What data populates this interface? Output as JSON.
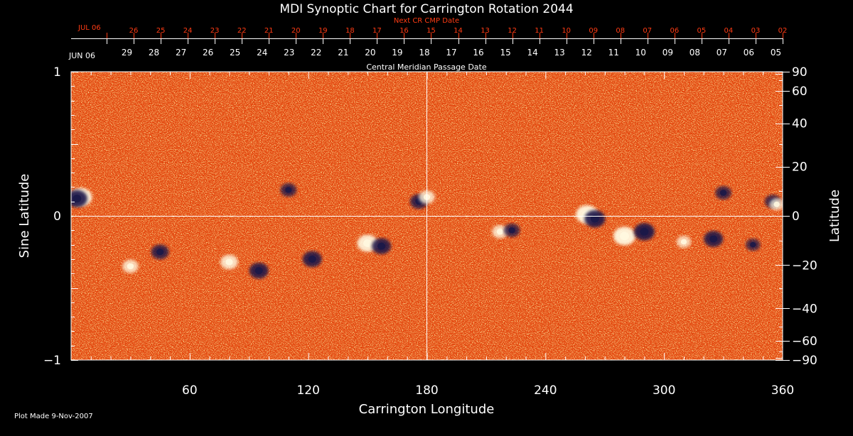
{
  "chart_data": {
    "type": "heatmap",
    "title": "MDI Synoptic Chart for Carrington Rotation 2044",
    "xlabel": "Carrington Longitude",
    "ylabel_left": "Sine Latitude",
    "ylabel_right": "Latitude",
    "xlim": [
      0,
      360
    ],
    "ylim": [
      -1,
      1
    ],
    "x_ticks": [
      60,
      120,
      180,
      240,
      300,
      360
    ],
    "left_ticks": [
      {
        "value": 1,
        "label": "1"
      },
      {
        "value": 0,
        "label": "0"
      },
      {
        "value": -1,
        "label": "−1"
      }
    ],
    "right_ticks": [
      {
        "lat": 90,
        "label": "90"
      },
      {
        "lat": 60,
        "label": "60"
      },
      {
        "lat": 40,
        "label": "40"
      },
      {
        "lat": 20,
        "label": "20"
      },
      {
        "lat": 0,
        "label": "0"
      },
      {
        "lat": -20,
        "label": "−20"
      },
      {
        "lat": -40,
        "label": "−40"
      },
      {
        "lat": -60,
        "label": "−60"
      },
      {
        "lat": -90,
        "label": "−90"
      }
    ],
    "gridlines": {
      "longitude": 180,
      "sine_latitude": 0
    },
    "colormap": [
      "#1a1a5e",
      "#c81e00",
      "#ff6a00",
      "#ffffff"
    ],
    "cmp_axis_label": "Central Meridian Passage Date",
    "cmp_start_label": "JUN 06",
    "cmp_dates": [
      "29",
      "28",
      "27",
      "26",
      "25",
      "24",
      "23",
      "22",
      "21",
      "20",
      "19",
      "18",
      "17",
      "16",
      "15",
      "14",
      "13",
      "12",
      "11",
      "10",
      "09",
      "08",
      "07",
      "06",
      "05"
    ],
    "next_cmp_label": "Next CR CMP Date",
    "next_start_label": "JUL 06",
    "next_dates": [
      "26",
      "25",
      "24",
      "23",
      "22",
      "21",
      "20",
      "19",
      "18",
      "17",
      "16",
      "15",
      "14",
      "13",
      "12",
      "11",
      "10",
      "09",
      "08",
      "07",
      "06",
      "05",
      "04",
      "03",
      "02"
    ],
    "active_regions": [
      {
        "lon": 5,
        "sinlat": 0.13,
        "polarity": "positive",
        "strength": 1.0
      },
      {
        "lon": 3,
        "sinlat": 0.12,
        "polarity": "negative",
        "strength": 0.9
      },
      {
        "lon": 30,
        "sinlat": -0.35,
        "polarity": "positive",
        "strength": 0.6
      },
      {
        "lon": 45,
        "sinlat": -0.25,
        "polarity": "negative",
        "strength": 0.7
      },
      {
        "lon": 80,
        "sinlat": -0.32,
        "polarity": "positive",
        "strength": 0.7
      },
      {
        "lon": 95,
        "sinlat": -0.38,
        "polarity": "negative",
        "strength": 0.8
      },
      {
        "lon": 110,
        "sinlat": 0.18,
        "polarity": "negative",
        "strength": 0.6
      },
      {
        "lon": 122,
        "sinlat": -0.3,
        "polarity": "negative",
        "strength": 0.8
      },
      {
        "lon": 150,
        "sinlat": -0.19,
        "polarity": "positive",
        "strength": 0.9
      },
      {
        "lon": 157,
        "sinlat": -0.21,
        "polarity": "negative",
        "strength": 0.8
      },
      {
        "lon": 176,
        "sinlat": 0.1,
        "polarity": "negative",
        "strength": 0.7
      },
      {
        "lon": 180,
        "sinlat": 0.13,
        "polarity": "positive",
        "strength": 0.6
      },
      {
        "lon": 217,
        "sinlat": -0.11,
        "polarity": "positive",
        "strength": 0.6
      },
      {
        "lon": 223,
        "sinlat": -0.1,
        "polarity": "negative",
        "strength": 0.6
      },
      {
        "lon": 261,
        "sinlat": 0.01,
        "polarity": "positive",
        "strength": 1.0
      },
      {
        "lon": 265,
        "sinlat": -0.02,
        "polarity": "negative",
        "strength": 0.9
      },
      {
        "lon": 280,
        "sinlat": -0.14,
        "polarity": "positive",
        "strength": 1.0
      },
      {
        "lon": 290,
        "sinlat": -0.11,
        "polarity": "negative",
        "strength": 0.9
      },
      {
        "lon": 310,
        "sinlat": -0.18,
        "polarity": "positive",
        "strength": 0.5
      },
      {
        "lon": 325,
        "sinlat": -0.16,
        "polarity": "negative",
        "strength": 0.8
      },
      {
        "lon": 330,
        "sinlat": 0.16,
        "polarity": "negative",
        "strength": 0.6
      },
      {
        "lon": 345,
        "sinlat": -0.2,
        "polarity": "negative",
        "strength": 0.5
      },
      {
        "lon": 355,
        "sinlat": 0.1,
        "polarity": "negative",
        "strength": 0.6
      },
      {
        "lon": 357,
        "sinlat": 0.08,
        "polarity": "positive",
        "strength": 0.5
      }
    ]
  },
  "footer": {
    "plot_made": "Plot Made  9-Nov-2007"
  }
}
